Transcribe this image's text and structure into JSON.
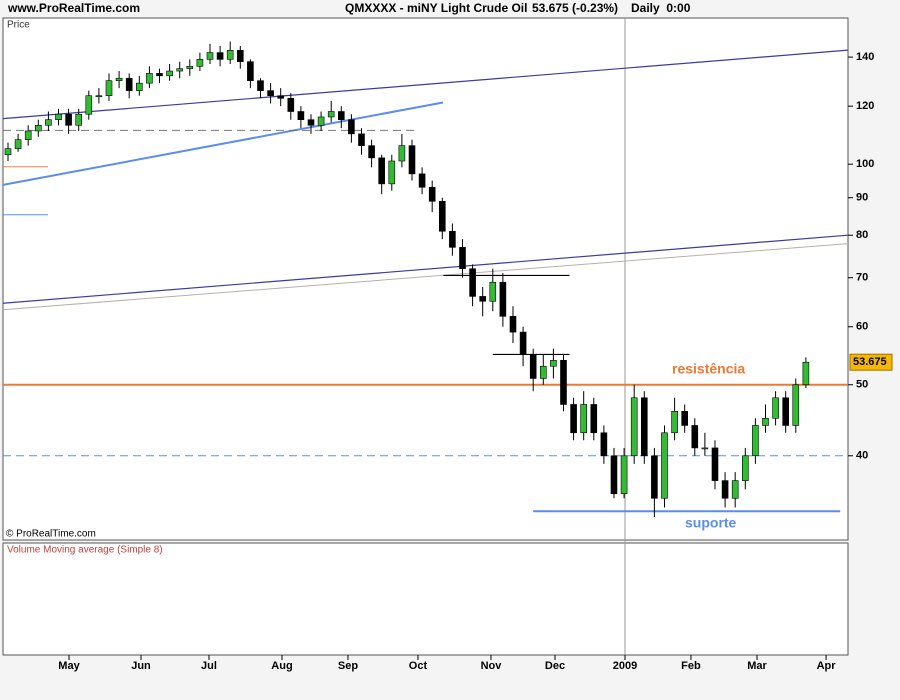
{
  "chart_data": {
    "type": "candlestick",
    "site": "www.ProRealTime.com",
    "title": "QMXXXX - miNY Light Crude Oil",
    "quote": "53.675 (-0.23%)",
    "period": "Daily  0:00",
    "panel_label": "Price",
    "copyright": "© ProRealTime.com",
    "volume_label": "Volume Moving average (Simple 8)",
    "log_y": true,
    "up_color": "#33bb33",
    "down_color": "#000000",
    "xlim": [
      -0.495,
      83.17
    ],
    "xticks": [
      {
        "value": 6.04,
        "label": "May"
      },
      {
        "value": 13.17,
        "label": "Jun"
      },
      {
        "value": 19.9,
        "label": "Jul"
      },
      {
        "value": 27.13,
        "label": "Aug"
      },
      {
        "value": 33.66,
        "label": "Sep"
      },
      {
        "value": 40.59,
        "label": "Oct"
      },
      {
        "value": 47.82,
        "label": "Nov"
      },
      {
        "value": 54.16,
        "label": "Dec"
      },
      {
        "value": 61.09,
        "label": "2009"
      },
      {
        "value": 67.62,
        "label": "Feb"
      },
      {
        "value": 74.16,
        "label": "Mar"
      },
      {
        "value": 81.0,
        "label": "Apr"
      }
    ],
    "ylim": [
      30.7,
      158.3
    ],
    "yticks": [
      40,
      50,
      60,
      70,
      80,
      90,
      100,
      120,
      140
    ],
    "open": [
      103,
      105,
      108,
      111,
      113,
      115,
      117,
      113,
      117,
      124,
      124,
      130,
      131,
      126,
      129,
      133,
      132,
      134,
      135,
      136,
      139,
      142,
      139,
      143,
      138,
      130,
      126,
      124,
      123,
      118,
      115,
      113,
      116,
      118,
      115,
      110,
      106,
      102,
      94,
      101,
      106,
      97,
      93,
      89,
      81,
      77,
      72,
      66,
      65,
      69,
      62,
      59,
      55,
      51,
      53,
      54,
      47,
      43,
      47,
      43,
      40,
      35.5,
      40,
      48,
      40,
      35,
      43,
      46,
      44,
      41,
      41,
      37,
      35,
      37,
      40,
      44,
      45,
      48,
      44,
      50
    ],
    "high": [
      107,
      110,
      113,
      115,
      118,
      119,
      119,
      119,
      126,
      127,
      133,
      134,
      133,
      132,
      136,
      135,
      137,
      138,
      139,
      142,
      146,
      145,
      147,
      145,
      139,
      131,
      129,
      127,
      125,
      120,
      117,
      118,
      122,
      120,
      117,
      112,
      108,
      103,
      103,
      110,
      108,
      99,
      95,
      90,
      83,
      79,
      73,
      68,
      72,
      71,
      64,
      60,
      56,
      55,
      56,
      55,
      48,
      49,
      48,
      44,
      41,
      41,
      50,
      49,
      41,
      44,
      48,
      47,
      45,
      43,
      42,
      38,
      38,
      41,
      45,
      47,
      49,
      49,
      51,
      54.5
    ],
    "low": [
      101,
      104,
      106,
      109,
      111,
      113,
      110,
      111,
      115,
      121,
      122,
      127,
      123,
      124,
      127,
      129,
      130,
      131,
      132,
      134,
      137,
      136,
      137,
      135,
      127,
      123,
      121,
      120,
      115,
      112,
      110,
      111,
      114,
      112,
      107,
      103,
      99,
      91,
      92,
      99,
      95,
      91,
      86,
      79,
      75,
      70,
      64,
      62,
      63,
      60,
      57,
      53,
      49,
      50,
      51,
      46,
      42,
      42,
      42,
      39,
      35,
      35,
      39,
      39,
      33,
      34,
      42,
      43,
      40,
      40,
      36,
      34,
      34,
      36,
      39,
      43,
      44,
      43,
      43,
      49.5
    ],
    "close": [
      105,
      108,
      111,
      113,
      115,
      117,
      113,
      117,
      124,
      124,
      130,
      131,
      126,
      129,
      133,
      132,
      134,
      135,
      136,
      139,
      142,
      139,
      143,
      138,
      130,
      126,
      124,
      123,
      118,
      115,
      113,
      116,
      118,
      115,
      110,
      106,
      102,
      94,
      101,
      106,
      97,
      93,
      89,
      81,
      77,
      72,
      66,
      65,
      69,
      62,
      59,
      55,
      51,
      53,
      54,
      47,
      43,
      47,
      43,
      40,
      35.5,
      40,
      48,
      40,
      35,
      43,
      46,
      44,
      41,
      41,
      37,
      35,
      37,
      40,
      44,
      45,
      48,
      44,
      50,
      53.675
    ],
    "lines": [
      {
        "x": [
          -0.495,
          83.17
        ],
        "y": [
          115.4,
          143.1
        ],
        "color": "#3a3aa8",
        "width": 1.2,
        "dash": false
      },
      {
        "x": [
          -0.495,
          83.17
        ],
        "y": [
          64.6,
          80.0
        ],
        "color": "#3a3aa8",
        "width": 1.2,
        "dash": false
      },
      {
        "x": [
          -0.495,
          83.17
        ],
        "y": [
          63.3,
          77.9
        ],
        "color": "#b8b0a8",
        "width": 1,
        "dash": false
      },
      {
        "x": [
          -0.495,
          43.07
        ],
        "y": [
          93.7,
          121.4
        ],
        "color": "#5b8def",
        "width": 2,
        "dash": false
      },
      {
        "x": [
          -0.495,
          40.3
        ],
        "y": [
          111.2,
          111.2
        ],
        "color": "#777777",
        "width": 1,
        "dash": true
      },
      {
        "x": [
          -0.495,
          3.96
        ],
        "y": [
          99.2,
          99.2
        ],
        "color": "#f08040",
        "width": 1,
        "dash": false
      },
      {
        "x": [
          -0.495,
          3.96
        ],
        "y": [
          85.3,
          85.3
        ],
        "color": "#5b8def",
        "width": 1,
        "dash": false
      },
      {
        "x": [
          -0.495,
          83.17
        ],
        "y": [
          50,
          50
        ],
        "color": "#f07830",
        "width": 2,
        "dash": false
      },
      {
        "x": [
          -0.495,
          83.17
        ],
        "y": [
          40,
          40
        ],
        "color": "#5b8def",
        "width": 1,
        "dash": true
      },
      {
        "x": [
          52,
          82.4
        ],
        "y": [
          33.6,
          33.6
        ],
        "color": "#5b8def",
        "width": 2,
        "dash": false
      },
      {
        "x": [
          43.1,
          55.6
        ],
        "y": [
          70.5,
          70.5
        ],
        "color": "#000000",
        "width": 1.2,
        "dash": false
      },
      {
        "x": [
          48,
          55.6
        ],
        "y": [
          55,
          55
        ],
        "color": "#000000",
        "width": 1.2,
        "dash": false
      }
    ],
    "annotations": [
      {
        "text": "resistência",
        "color": "#f07830"
      },
      {
        "text": "suporte",
        "color": "#5b8def"
      }
    ]
  }
}
